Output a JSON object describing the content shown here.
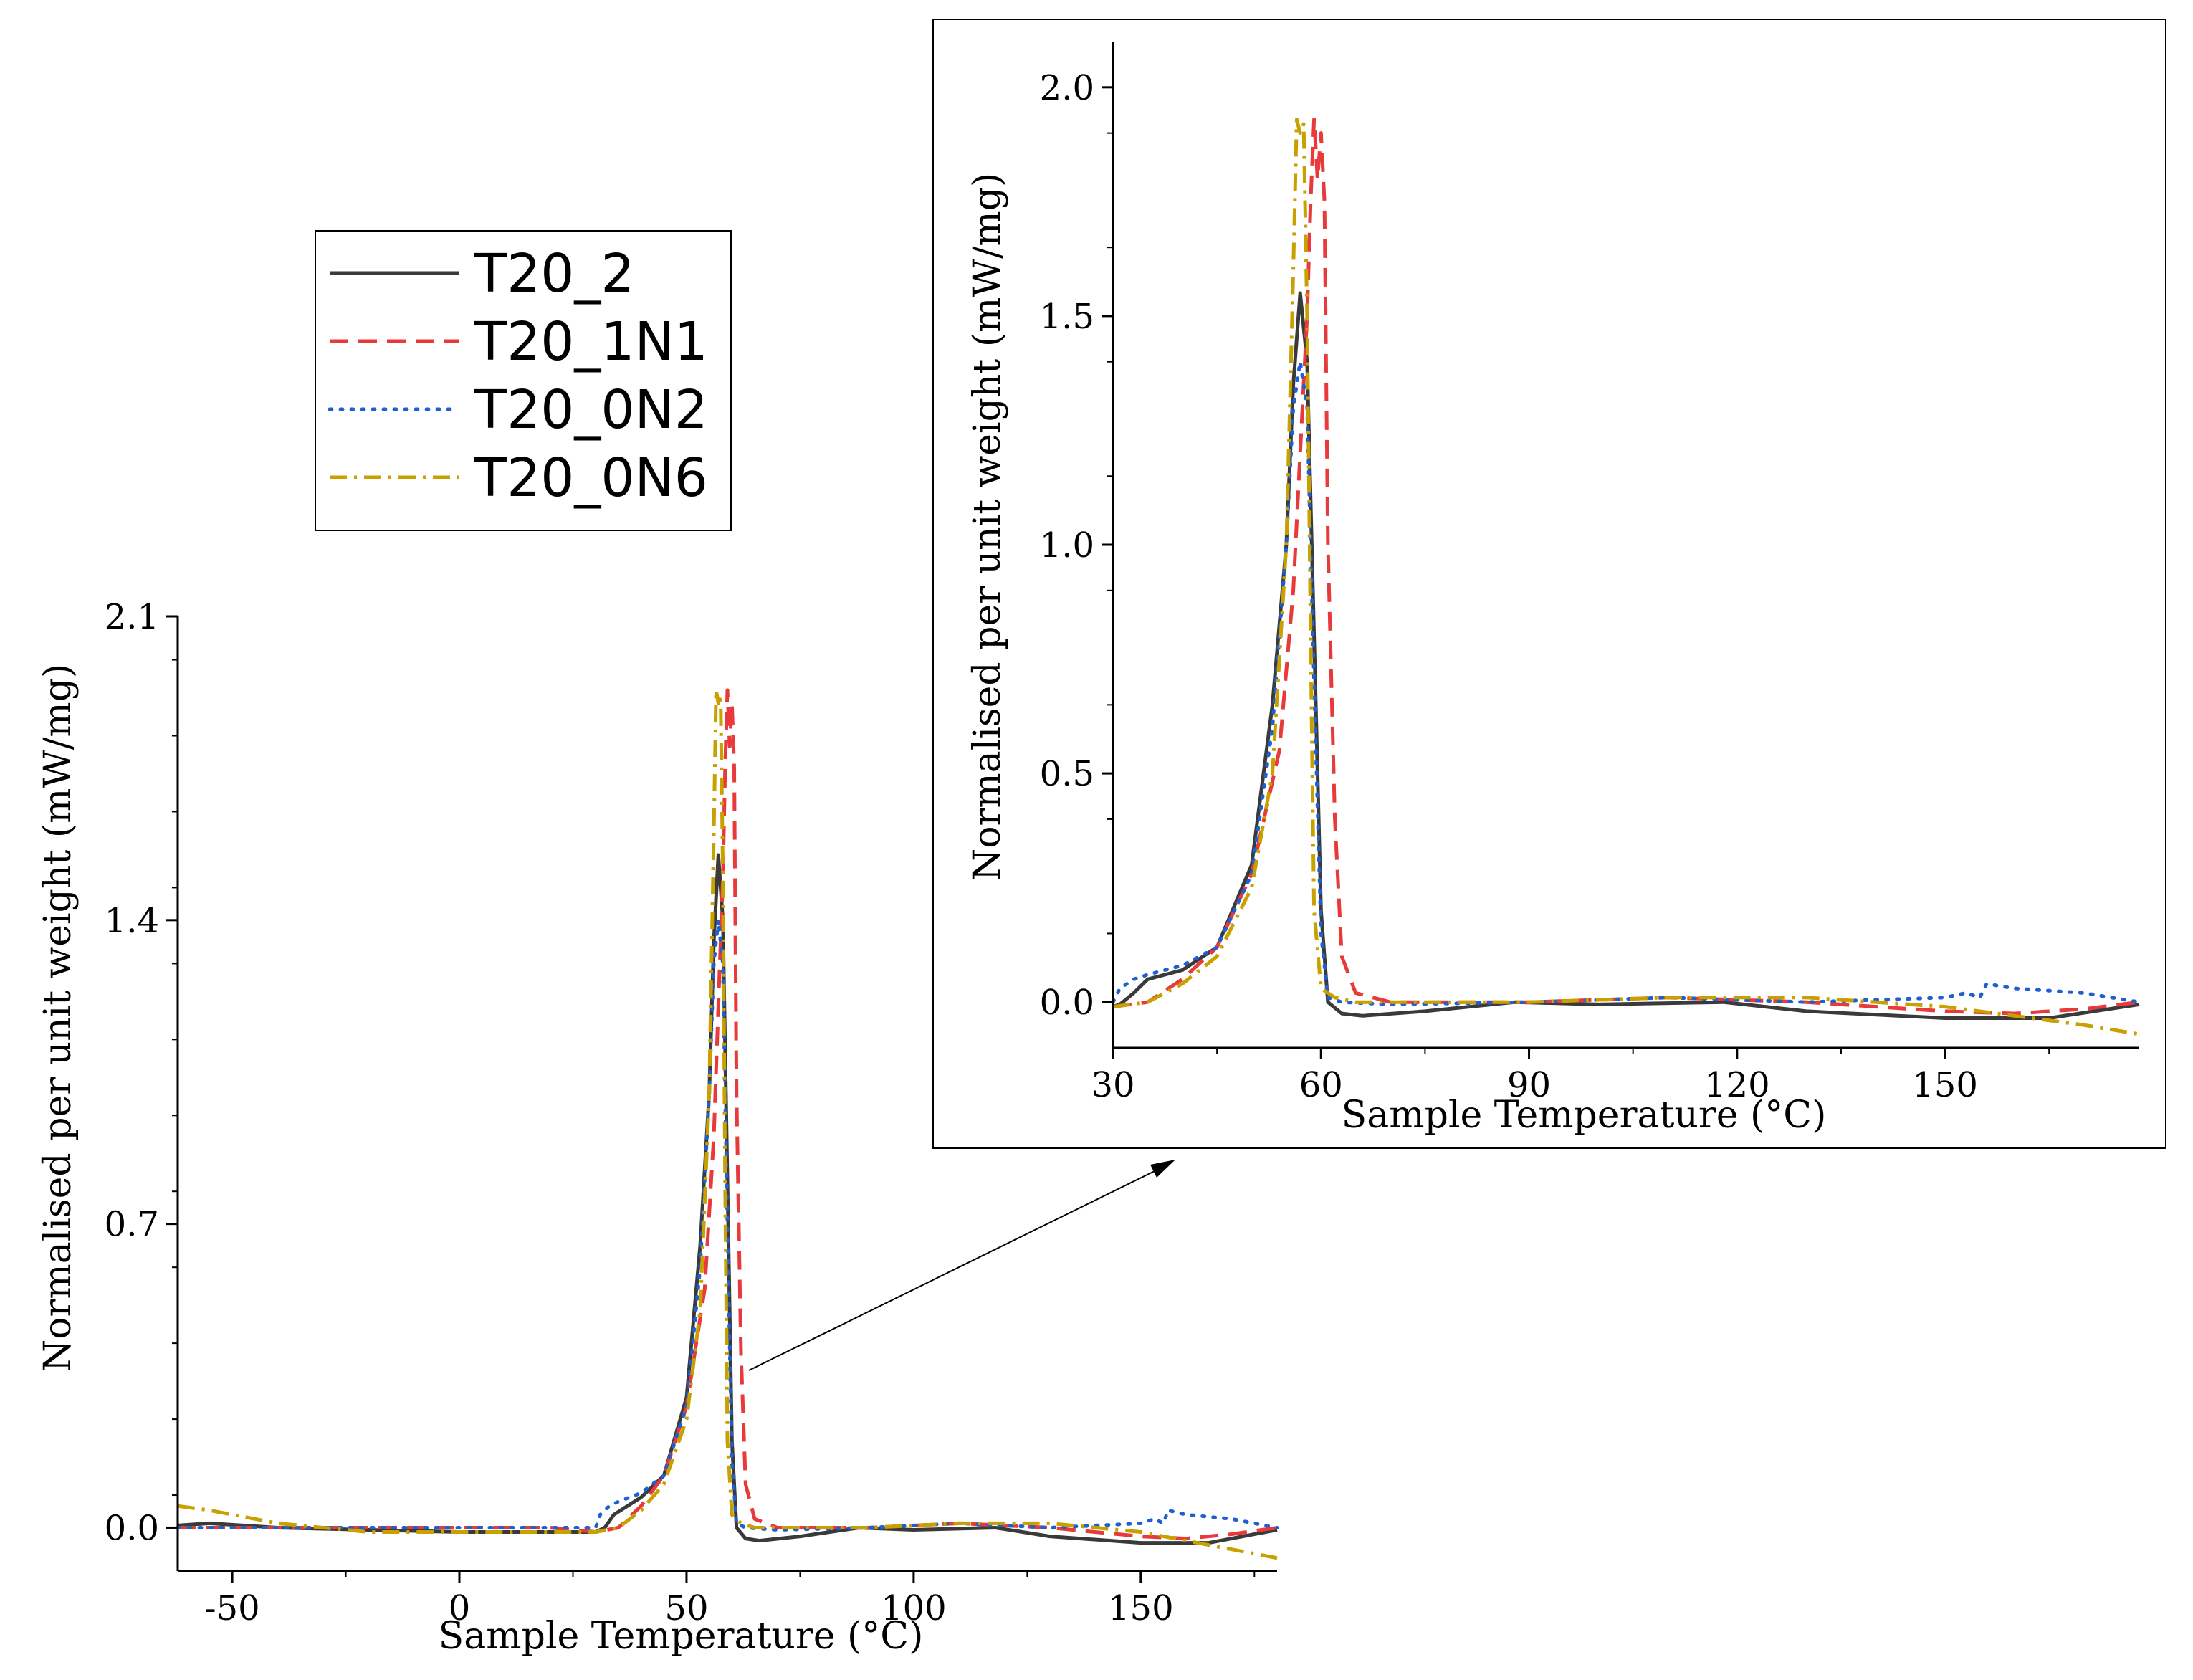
{
  "chart_data": [
    {
      "type": "line",
      "id": "main",
      "xlabel": "Sample Temperature (°C)",
      "ylabel": "Normalised per unit weight (mW/mg)",
      "xlim": [
        -62,
        180
      ],
      "ylim": [
        -0.1,
        2.1
      ],
      "xticks": [
        -50,
        0,
        50,
        100,
        150
      ],
      "xtick_labels": [
        "-50",
        "0",
        "50",
        "100",
        "150"
      ],
      "yticks": [
        0.0,
        0.7,
        1.4,
        2.1
      ],
      "ytick_labels": [
        "0.0",
        "0.7",
        "1.4",
        "2.1"
      ],
      "legend": {
        "placement": "top-left",
        "entries": [
          {
            "label": "T20_2",
            "color": "#3a3a3a",
            "style": "solid"
          },
          {
            "label": "T20_1N1",
            "color": "#e8393b",
            "style": "dashed"
          },
          {
            "label": "T20_0N2",
            "color": "#1f5fd0",
            "style": "dotted"
          },
          {
            "label": "T20_0N6",
            "color": "#c8a000",
            "style": "dashdot"
          }
        ]
      },
      "series": [
        {
          "name": "T20_2",
          "x": [
            -62,
            -55,
            -40,
            -20,
            0,
            20,
            30,
            32,
            34,
            40,
            45,
            50,
            53,
            55,
            56,
            57,
            58,
            59,
            60,
            61,
            63,
            66,
            75,
            88,
            100,
            118,
            130,
            150,
            165,
            180
          ],
          "y": [
            0.005,
            0.01,
            0.0,
            -0.005,
            -0.01,
            -0.01,
            -0.01,
            0.0,
            0.03,
            0.07,
            0.12,
            0.3,
            0.65,
            1.0,
            1.35,
            1.55,
            1.4,
            0.8,
            0.2,
            0.0,
            -0.025,
            -0.03,
            -0.02,
            0.0,
            -0.005,
            0.0,
            -0.02,
            -0.035,
            -0.035,
            -0.005
          ]
        },
        {
          "name": "T20_1N1",
          "x": [
            -62,
            -40,
            -20,
            0,
            20,
            30,
            35,
            40,
            45,
            50,
            54,
            56,
            57,
            58,
            58.5,
            59,
            59.5,
            60,
            60.5,
            61,
            62,
            63,
            65,
            70,
            90,
            110,
            130,
            150,
            160,
            170,
            180
          ],
          "y": [
            0.0,
            0.0,
            0.0,
            0.0,
            0.0,
            -0.01,
            0.0,
            0.05,
            0.12,
            0.28,
            0.55,
            0.9,
            1.2,
            1.5,
            1.75,
            1.93,
            1.8,
            1.9,
            1.75,
            1.0,
            0.4,
            0.1,
            0.02,
            0.0,
            0.0,
            0.01,
            0.0,
            -0.02,
            -0.025,
            -0.015,
            0.0
          ]
        },
        {
          "name": "T20_0N2",
          "x": [
            -62,
            -40,
            -20,
            0,
            20,
            30,
            31,
            33,
            35,
            40,
            45,
            50,
            53,
            55,
            56,
            57,
            58,
            59,
            60,
            61,
            63,
            70,
            90,
            110,
            130,
            150,
            153,
            155,
            156,
            160,
            170,
            180
          ],
          "y": [
            0.0,
            0.0,
            0.0,
            0.0,
            0.0,
            0.0,
            0.03,
            0.05,
            0.06,
            0.08,
            0.12,
            0.28,
            0.6,
            1.0,
            1.3,
            1.4,
            1.3,
            0.7,
            0.15,
            0.01,
            0.0,
            -0.005,
            0.0,
            0.01,
            0.0,
            0.01,
            0.02,
            0.01,
            0.04,
            0.03,
            0.02,
            0.0
          ]
        },
        {
          "name": "T20_0N6",
          "x": [
            -62,
            -55,
            -40,
            -20,
            0,
            20,
            30,
            35,
            40,
            45,
            50,
            53,
            55,
            56,
            56.5,
            57,
            57.5,
            58,
            58.5,
            59,
            60,
            62,
            65,
            70,
            90,
            110,
            130,
            150,
            160,
            170,
            180
          ],
          "y": [
            0.05,
            0.04,
            0.01,
            -0.01,
            -0.01,
            -0.01,
            -0.01,
            0.0,
            0.04,
            0.1,
            0.25,
            0.5,
            1.0,
            1.6,
            1.93,
            1.9,
            1.92,
            1.5,
            0.8,
            0.2,
            0.03,
            0.01,
            0.0,
            0.0,
            0.0,
            0.01,
            0.01,
            -0.01,
            -0.03,
            -0.05,
            -0.07
          ]
        }
      ]
    },
    {
      "type": "line",
      "id": "inset",
      "xlabel": "Sample Temperature (°C)",
      "ylabel": "Normalised per unit weight (mW/mg)",
      "xlim": [
        30,
        178
      ],
      "ylim": [
        -0.1,
        2.1
      ],
      "xticks": [
        30,
        60,
        90,
        120,
        150
      ],
      "xtick_labels": [
        "30",
        "60",
        "90",
        "120",
        "150"
      ],
      "yticks": [
        0.0,
        0.5,
        1.0,
        1.5,
        2.0
      ],
      "ytick_labels": [
        "0.0",
        "0.5",
        "1.0",
        "1.5",
        "2.0"
      ],
      "series": [
        {
          "name": "T20_2",
          "x": [
            30,
            31,
            33,
            35,
            40,
            45,
            50,
            53,
            55,
            56,
            57,
            58,
            59,
            60,
            61,
            63,
            66,
            75,
            88,
            100,
            118,
            130,
            150,
            165,
            178
          ],
          "y": [
            -0.01,
            -0.005,
            0.02,
            0.05,
            0.07,
            0.12,
            0.3,
            0.65,
            1.0,
            1.35,
            1.55,
            1.4,
            0.8,
            0.2,
            0.0,
            -0.025,
            -0.03,
            -0.02,
            0.0,
            -0.005,
            0.0,
            -0.02,
            -0.035,
            -0.035,
            -0.005
          ]
        },
        {
          "name": "T20_1N1",
          "x": [
            30,
            35,
            40,
            45,
            50,
            54,
            56,
            57,
            58,
            58.5,
            59,
            59.5,
            60,
            60.5,
            61,
            62,
            63,
            65,
            70,
            90,
            110,
            130,
            150,
            160,
            170,
            178
          ],
          "y": [
            -0.01,
            0.0,
            0.05,
            0.12,
            0.28,
            0.55,
            0.9,
            1.2,
            1.5,
            1.75,
            1.93,
            1.8,
            1.9,
            1.75,
            1.0,
            0.4,
            0.1,
            0.02,
            0.0,
            0.0,
            0.01,
            0.0,
            -0.02,
            -0.025,
            -0.015,
            0.0
          ]
        },
        {
          "name": "T20_0N2",
          "x": [
            30,
            31,
            33,
            35,
            40,
            45,
            50,
            53,
            55,
            56,
            57,
            58,
            59,
            60,
            61,
            63,
            70,
            90,
            110,
            130,
            150,
            153,
            155,
            156,
            160,
            170,
            178
          ],
          "y": [
            0.0,
            0.03,
            0.05,
            0.06,
            0.08,
            0.12,
            0.28,
            0.6,
            1.0,
            1.3,
            1.4,
            1.3,
            0.7,
            0.15,
            0.01,
            0.0,
            -0.005,
            0.0,
            0.01,
            0.0,
            0.01,
            0.02,
            0.01,
            0.04,
            0.03,
            0.02,
            0.0
          ]
        },
        {
          "name": "T20_0N6",
          "x": [
            30,
            35,
            40,
            45,
            50,
            53,
            55,
            56,
            56.5,
            57,
            57.5,
            58,
            58.5,
            59,
            60,
            62,
            65,
            70,
            90,
            110,
            130,
            150,
            160,
            170,
            178
          ],
          "y": [
            -0.01,
            0.0,
            0.04,
            0.1,
            0.25,
            0.5,
            1.0,
            1.6,
            1.93,
            1.9,
            1.92,
            1.5,
            0.8,
            0.2,
            0.03,
            0.01,
            0.0,
            0.0,
            0.0,
            0.01,
            0.01,
            -0.01,
            -0.03,
            -0.05,
            -0.07
          ]
        }
      ]
    }
  ]
}
